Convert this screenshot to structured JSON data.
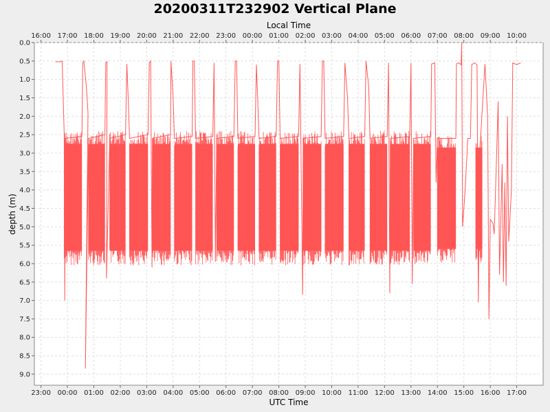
{
  "chart_data": {
    "type": "line",
    "title": "20200311T232902 Vertical Plane",
    "xlabel_bottom": "UTC Time",
    "xlabel_top": "Local Time",
    "ylabel": "depth (m)",
    "y_inverted": true,
    "ylim": [
      0.0,
      9.3
    ],
    "y_ticks": [
      "0.0",
      "0.5",
      "1.0",
      "1.5",
      "2.0",
      "2.5",
      "3.0",
      "3.5",
      "4.0",
      "4.5",
      "5.0",
      "5.5",
      "6.0",
      "6.5",
      "7.0",
      "7.5",
      "8.0",
      "8.5",
      "9.0"
    ],
    "x_hours_range": [
      -1.25,
      18.0
    ],
    "utc_ticks": [
      {
        "h": -1,
        "label": "23:00"
      },
      {
        "h": 0,
        "label": "00:00"
      },
      {
        "h": 1,
        "label": "01:00"
      },
      {
        "h": 2,
        "label": "02:00"
      },
      {
        "h": 3,
        "label": "03:00"
      },
      {
        "h": 4,
        "label": "04:00"
      },
      {
        "h": 5,
        "label": "05:00"
      },
      {
        "h": 6,
        "label": "06:00"
      },
      {
        "h": 7,
        "label": "07:00"
      },
      {
        "h": 8,
        "label": "08:00"
      },
      {
        "h": 9,
        "label": "09:00"
      },
      {
        "h": 10,
        "label": "10:00"
      },
      {
        "h": 11,
        "label": "11:00"
      },
      {
        "h": 12,
        "label": "12:00"
      },
      {
        "h": 13,
        "label": "13:00"
      },
      {
        "h": 14,
        "label": "14:00"
      },
      {
        "h": 15,
        "label": "15:00"
      },
      {
        "h": 16,
        "label": "16:00"
      },
      {
        "h": 17,
        "label": "17:00"
      }
    ],
    "local_ticks": [
      {
        "h": -1,
        "label": "16:00"
      },
      {
        "h": 0,
        "label": "17:00"
      },
      {
        "h": 1,
        "label": "18:00"
      },
      {
        "h": 2,
        "label": "19:00"
      },
      {
        "h": 3,
        "label": "20:00"
      },
      {
        "h": 4,
        "label": "21:00"
      },
      {
        "h": 5,
        "label": "22:00"
      },
      {
        "h": 6,
        "label": "23:00"
      },
      {
        "h": 7,
        "label": "00:00"
      },
      {
        "h": 8,
        "label": "01:00"
      },
      {
        "h": 9,
        "label": "02:00"
      },
      {
        "h": 10,
        "label": "03:00"
      },
      {
        "h": 11,
        "label": "04:00"
      },
      {
        "h": 12,
        "label": "05:00"
      },
      {
        "h": 13,
        "label": "06:00"
      },
      {
        "h": 14,
        "label": "07:00"
      },
      {
        "h": 15,
        "label": "08:00"
      },
      {
        "h": 16,
        "label": "09:00"
      },
      {
        "h": 17,
        "label": "10:00"
      }
    ],
    "grid": true,
    "series_color": "#ff5555",
    "series": [
      {
        "points": [
          [
            -0.45,
            0.52
          ],
          [
            -0.25,
            0.52
          ],
          [
            -0.2,
            0.5
          ],
          [
            -0.12,
            2.5
          ],
          [
            -0.1,
            7.0
          ],
          [
            -0.08,
            2.6
          ],
          [
            0.55,
            2.55
          ],
          [
            0.58,
            0.55
          ],
          [
            0.62,
            0.5
          ],
          [
            0.72,
            1.2
          ],
          [
            0.78,
            1.9
          ],
          [
            0.68,
            8.85
          ],
          [
            0.8,
            2.6
          ],
          [
            1.42,
            2.5
          ],
          [
            1.45,
            0.55
          ],
          [
            1.5,
            0.52
          ],
          [
            1.48,
            6.4
          ],
          [
            1.6,
            2.6
          ],
          [
            2.2,
            2.5
          ],
          [
            2.25,
            0.58
          ],
          [
            2.3,
            1.5
          ],
          [
            2.35,
            2.6
          ],
          [
            3.05,
            2.5
          ],
          [
            3.1,
            0.55
          ],
          [
            3.15,
            0.5
          ],
          [
            3.2,
            6.1
          ],
          [
            3.22,
            2.6
          ],
          [
            3.9,
            2.5
          ],
          [
            3.92,
            0.5
          ],
          [
            4.0,
            1.5
          ],
          [
            4.05,
            2.6
          ],
          [
            4.72,
            2.55
          ],
          [
            4.75,
            0.5
          ],
          [
            4.8,
            0.5
          ],
          [
            4.85,
            2.6
          ],
          [
            5.5,
            2.55
          ],
          [
            5.55,
            0.55
          ],
          [
            5.6,
            5.95
          ],
          [
            5.65,
            2.6
          ],
          [
            6.3,
            2.55
          ],
          [
            6.35,
            0.5
          ],
          [
            6.4,
            0.5
          ],
          [
            6.45,
            2.6
          ],
          [
            7.1,
            2.55
          ],
          [
            7.15,
            0.6
          ],
          [
            7.2,
            1.5
          ],
          [
            7.25,
            2.6
          ],
          [
            7.9,
            2.55
          ],
          [
            7.95,
            0.5
          ],
          [
            8.0,
            0.5
          ],
          [
            8.05,
            2.6
          ],
          [
            8.75,
            2.55
          ],
          [
            8.8,
            0.58
          ],
          [
            8.9,
            6.85
          ],
          [
            8.92,
            2.6
          ],
          [
            9.6,
            2.55
          ],
          [
            9.65,
            0.5
          ],
          [
            9.7,
            0.5
          ],
          [
            9.75,
            2.6
          ],
          [
            10.45,
            2.55
          ],
          [
            10.5,
            0.55
          ],
          [
            10.6,
            1.5
          ],
          [
            10.65,
            2.6
          ],
          [
            11.25,
            2.55
          ],
          [
            11.3,
            0.5
          ],
          [
            11.4,
            1.2
          ],
          [
            11.45,
            2.6
          ],
          [
            12.1,
            2.55
          ],
          [
            12.15,
            0.55
          ],
          [
            12.2,
            6.8
          ],
          [
            12.22,
            2.6
          ],
          [
            12.95,
            2.55
          ],
          [
            13.0,
            0.55
          ],
          [
            13.05,
            6.55
          ],
          [
            13.1,
            2.6
          ],
          [
            13.75,
            2.55
          ],
          [
            13.78,
            0.58
          ],
          [
            13.9,
            0.55
          ],
          [
            13.95,
            3.8
          ],
          [
            14.0,
            2.6
          ],
          [
            14.7,
            2.6
          ],
          [
            14.72,
            0.58
          ],
          [
            14.8,
            0.55
          ],
          [
            14.9,
            0.6
          ],
          [
            14.92,
            0.0
          ],
          [
            14.95,
            5.0
          ],
          [
            15.05,
            4.0
          ],
          [
            15.15,
            2.6
          ],
          [
            15.25,
            2.6
          ],
          [
            15.3,
            0.6
          ],
          [
            15.4,
            0.55
          ],
          [
            15.5,
            0.6
          ],
          [
            15.55,
            7.05
          ],
          [
            15.6,
            3.0
          ],
          [
            15.8,
            0.58
          ],
          [
            15.9,
            2.0
          ],
          [
            15.95,
            7.5
          ],
          [
            16.0,
            4.8
          ],
          [
            16.1,
            4.9
          ],
          [
            16.15,
            5.2
          ],
          [
            16.2,
            4.0
          ],
          [
            16.3,
            1.6
          ],
          [
            16.35,
            6.3
          ],
          [
            16.45,
            3.3
          ],
          [
            16.5,
            6.5
          ],
          [
            16.55,
            3.8
          ],
          [
            16.6,
            6.6
          ],
          [
            16.65,
            2.0
          ],
          [
            16.7,
            5.4
          ],
          [
            16.8,
            4.0
          ],
          [
            16.85,
            0.55
          ],
          [
            17.0,
            0.6
          ],
          [
            17.15,
            0.55
          ]
        ]
      }
    ],
    "dense_bands": [
      {
        "start": -0.12,
        "end": 0.55,
        "top": 2.4,
        "bottom": 5.75
      },
      {
        "start": 0.8,
        "end": 1.42,
        "top": 2.4,
        "bottom": 5.75
      },
      {
        "start": 1.6,
        "end": 2.2,
        "top": 2.4,
        "bottom": 5.75
      },
      {
        "start": 2.35,
        "end": 3.05,
        "top": 2.4,
        "bottom": 5.75
      },
      {
        "start": 3.22,
        "end": 3.9,
        "top": 2.4,
        "bottom": 5.75
      },
      {
        "start": 4.05,
        "end": 4.72,
        "top": 2.4,
        "bottom": 5.75
      },
      {
        "start": 4.85,
        "end": 5.5,
        "top": 2.4,
        "bottom": 5.75
      },
      {
        "start": 5.65,
        "end": 6.3,
        "top": 2.4,
        "bottom": 5.75
      },
      {
        "start": 6.45,
        "end": 7.1,
        "top": 2.4,
        "bottom": 5.75
      },
      {
        "start": 7.25,
        "end": 7.9,
        "top": 2.4,
        "bottom": 5.75
      },
      {
        "start": 8.05,
        "end": 8.75,
        "top": 2.4,
        "bottom": 5.75
      },
      {
        "start": 8.92,
        "end": 9.6,
        "top": 2.4,
        "bottom": 5.75
      },
      {
        "start": 9.75,
        "end": 10.45,
        "top": 2.4,
        "bottom": 5.75
      },
      {
        "start": 10.65,
        "end": 11.25,
        "top": 2.4,
        "bottom": 5.75
      },
      {
        "start": 11.45,
        "end": 12.1,
        "top": 2.4,
        "bottom": 5.75
      },
      {
        "start": 12.22,
        "end": 12.95,
        "top": 2.4,
        "bottom": 5.75
      },
      {
        "start": 13.1,
        "end": 13.75,
        "top": 2.4,
        "bottom": 5.75
      },
      {
        "start": 14.0,
        "end": 14.7,
        "top": 2.5,
        "bottom": 5.7
      },
      {
        "start": 15.45,
        "end": 15.7,
        "top": 2.5,
        "bottom": 5.7
      }
    ]
  }
}
